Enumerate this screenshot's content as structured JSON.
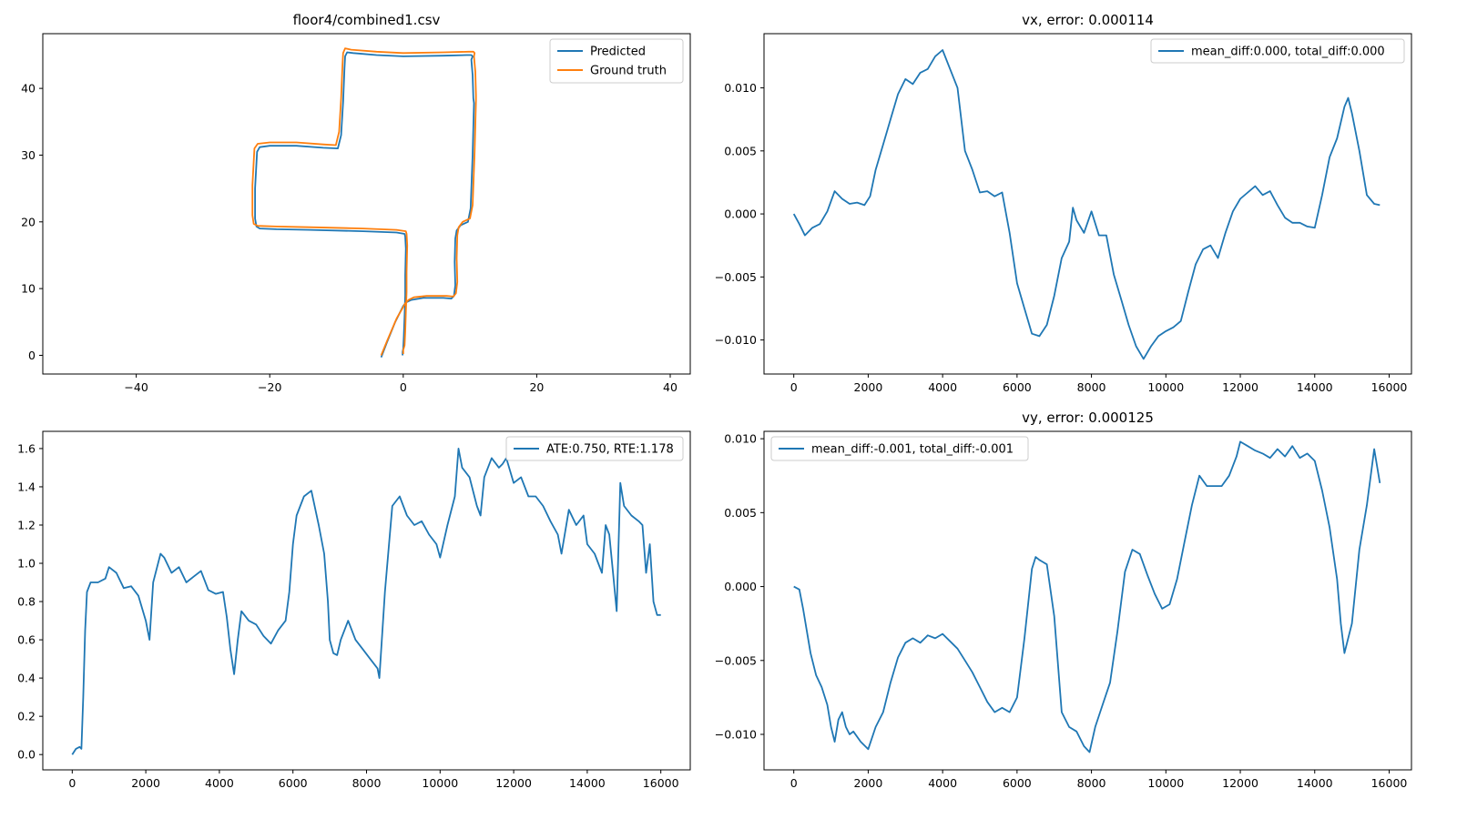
{
  "chart_data": [
    {
      "type": "line",
      "title": "floor4/combined1.csv",
      "xlim": [
        -54,
        43
      ],
      "ylim": [
        -2.8,
        48.2
      ],
      "xticks": [
        -40,
        -20,
        0,
        20,
        40
      ],
      "yticks": [
        0,
        10,
        20,
        30,
        40
      ],
      "xtick_labels": [
        "−40",
        "−20",
        "0",
        "20",
        "40"
      ],
      "ytick_labels": [
        "0",
        "10",
        "20",
        "30",
        "40"
      ],
      "legend": "top-right",
      "series": [
        {
          "name": "Predicted",
          "color": "#1f77b4",
          "x": [
            -3.3,
            -2.5,
            -1.2,
            0.0,
            0.4,
            1.2,
            3,
            6,
            7.2,
            7.6,
            7.8,
            7.7,
            7.8,
            8.0,
            8.6,
            9.7,
            10.1,
            10.4,
            10.6,
            10.5,
            10.4,
            10.2,
            10.4,
            10.2,
            9.5,
            6,
            0,
            -4,
            -7.5,
            -8.4,
            -8.7,
            -8.8,
            -9.0,
            -9.3,
            -9.8,
            -12,
            -16,
            -20,
            -21.5,
            -21.9,
            -22.2,
            -22.2,
            -22.0,
            -21.5,
            -19,
            -14,
            -6,
            -1,
            0.2,
            0.3,
            0.4,
            0.3,
            0.3,
            0.2,
            0.1,
            0.0,
            -0.1,
            -0.1
          ],
          "y": [
            -0.3,
            1.8,
            5,
            7.4,
            7.9,
            8.3,
            8.6,
            8.6,
            8.5,
            8.9,
            10.5,
            14,
            17.5,
            18.7,
            19.5,
            20,
            22,
            30,
            37.8,
            38.5,
            42,
            44.3,
            44.8,
            45,
            45,
            44.9,
            44.8,
            45.0,
            45.3,
            45.4,
            44.8,
            43,
            38,
            33,
            31,
            31.1,
            31.4,
            31.4,
            31.2,
            30.5,
            25,
            20.5,
            19.3,
            19.0,
            18.9,
            18.8,
            18.6,
            18.4,
            18.2,
            17.8,
            16,
            12,
            9,
            6,
            3,
            1,
            0.5,
            0.0
          ]
        },
        {
          "name": "Ground truth",
          "color": "#ff7f0e",
          "x": [
            -3.3,
            -2.4,
            -1.0,
            0.3,
            0.8,
            1.6,
            3.5,
            6.5,
            7.5,
            7.9,
            8.1,
            8.0,
            8.1,
            8.3,
            8.9,
            10.0,
            10.4,
            10.7,
            10.9,
            10.9,
            10.8,
            10.6,
            10.7,
            10.5,
            9.8,
            6,
            0,
            -4,
            -7.8,
            -8.7,
            -9.0,
            -9.1,
            -9.3,
            -9.6,
            -10.1,
            -12,
            -16,
            -20,
            -21.8,
            -22.3,
            -22.6,
            -22.6,
            -22.4,
            -21.8,
            -19,
            -14,
            -6,
            -1,
            0.4,
            0.5,
            0.6,
            0.5,
            0.5,
            0.4,
            0.3,
            0.2,
            0.0,
            0.0
          ],
          "y": [
            0.0,
            2.2,
            5.5,
            7.8,
            8.3,
            8.7,
            8.9,
            8.9,
            8.8,
            9.3,
            11,
            14.5,
            18,
            19.2,
            20,
            20.5,
            22.5,
            30.5,
            38.2,
            39,
            42.5,
            44.8,
            45.3,
            45.5,
            45.5,
            45.4,
            45.3,
            45.5,
            45.8,
            46.0,
            45.3,
            43.5,
            38.5,
            33.5,
            31.5,
            31.6,
            31.9,
            31.9,
            31.7,
            31.0,
            25.5,
            21,
            19.7,
            19.4,
            19.3,
            19.2,
            19.0,
            18.8,
            18.6,
            18.2,
            16.5,
            12.5,
            9.5,
            6.5,
            3.5,
            1.5,
            0.8,
            0.2
          ]
        }
      ]
    },
    {
      "type": "line",
      "title": "vx, error: 0.000114",
      "xlim": [
        -800,
        16600
      ],
      "ylim": [
        -0.0127,
        0.0143
      ],
      "xticks": [
        0,
        2000,
        4000,
        6000,
        8000,
        10000,
        12000,
        14000,
        16000
      ],
      "yticks": [
        -0.01,
        -0.005,
        0.0,
        0.005,
        0.01
      ],
      "xtick_labels": [
        "0",
        "2000",
        "4000",
        "6000",
        "8000",
        "10000",
        "12000",
        "14000",
        "16000"
      ],
      "ytick_labels": [
        "−0.010",
        "−0.005",
        "0.000",
        "0.005",
        "0.010"
      ],
      "legend": "top-right",
      "series": [
        {
          "name": "mean_diff:0.000, total_diff:0.000",
          "color": "#1f77b4",
          "x": [
            0,
            150,
            300,
            500,
            700,
            900,
            1100,
            1300,
            1500,
            1700,
            1900,
            2050,
            2200,
            2400,
            2600,
            2800,
            3000,
            3200,
            3400,
            3600,
            3800,
            4000,
            4200,
            4400,
            4500,
            4600,
            4800,
            5000,
            5200,
            5400,
            5600,
            5800,
            6000,
            6200,
            6400,
            6600,
            6800,
            7000,
            7200,
            7400,
            7500,
            7600,
            7800,
            8000,
            8200,
            8400,
            8600,
            8800,
            9000,
            9200,
            9400,
            9600,
            9800,
            10000,
            10200,
            10400,
            10600,
            10800,
            11000,
            11200,
            11400,
            11600,
            11800,
            12000,
            12200,
            12400,
            12600,
            12800,
            13000,
            13200,
            13400,
            13600,
            13800,
            14000,
            14200,
            14400,
            14600,
            14800,
            14900,
            15000,
            15200,
            15400,
            15600,
            15750
          ],
          "y": [
            0.0,
            -0.0008,
            -0.0017,
            -0.0011,
            -0.0008,
            0.0002,
            0.0018,
            0.0012,
            0.0008,
            0.0009,
            0.0007,
            0.0014,
            0.0035,
            0.0055,
            0.0075,
            0.0095,
            0.0107,
            0.0103,
            0.0112,
            0.0115,
            0.0125,
            0.013,
            0.0115,
            0.01,
            0.0075,
            0.005,
            0.0035,
            0.0017,
            0.0018,
            0.0014,
            0.0017,
            -0.0015,
            -0.0055,
            -0.0075,
            -0.0095,
            -0.0097,
            -0.0088,
            -0.0065,
            -0.0035,
            -0.0022,
            0.0005,
            -0.0005,
            -0.0015,
            0.0002,
            -0.0017,
            -0.0017,
            -0.0048,
            -0.0068,
            -0.0088,
            -0.0105,
            -0.0115,
            -0.0105,
            -0.0097,
            -0.0093,
            -0.009,
            -0.0085,
            -0.0062,
            -0.004,
            -0.0028,
            -0.0025,
            -0.0035,
            -0.0015,
            0.0002,
            0.0012,
            0.0017,
            0.0022,
            0.0015,
            0.0018,
            0.0007,
            -0.0003,
            -0.0007,
            -0.0007,
            -0.001,
            -0.0011,
            0.0015,
            0.0045,
            0.006,
            0.0085,
            0.0092,
            0.008,
            0.005,
            0.0015,
            0.0008,
            0.0007
          ]
        }
      ]
    },
    {
      "type": "line",
      "title": "",
      "xlim": [
        -800,
        16800
      ],
      "ylim": [
        -0.08,
        1.69
      ],
      "xticks": [
        0,
        2000,
        4000,
        6000,
        8000,
        10000,
        12000,
        14000,
        16000
      ],
      "yticks": [
        0.0,
        0.2,
        0.4,
        0.6,
        0.8,
        1.0,
        1.2,
        1.4,
        1.6
      ],
      "xtick_labels": [
        "0",
        "2000",
        "4000",
        "6000",
        "8000",
        "10000",
        "12000",
        "14000",
        "16000"
      ],
      "ytick_labels": [
        "0.0",
        "0.2",
        "0.4",
        "0.6",
        "0.8",
        "1.0",
        "1.2",
        "1.4",
        "1.6"
      ],
      "legend": "top-right",
      "series": [
        {
          "name": "ATE:0.750, RTE:1.178",
          "color": "#1f77b4",
          "x": [
            0,
            100,
            200,
            250,
            300,
            350,
            400,
            500,
            700,
            900,
            1000,
            1200,
            1400,
            1600,
            1800,
            2000,
            2100,
            2200,
            2400,
            2500,
            2700,
            2900,
            3100,
            3300,
            3500,
            3700,
            3900,
            4100,
            4200,
            4300,
            4400,
            4500,
            4600,
            4800,
            5000,
            5200,
            5400,
            5600,
            5800,
            5900,
            6000,
            6100,
            6300,
            6500,
            6700,
            6850,
            6950,
            7000,
            7100,
            7200,
            7300,
            7500,
            7700,
            7900,
            8100,
            8300,
            8350,
            8500,
            8700,
            8900,
            9100,
            9300,
            9500,
            9700,
            9900,
            10000,
            10200,
            10400,
            10500,
            10600,
            10800,
            11000,
            11100,
            11200,
            11400,
            11600,
            11700,
            11800,
            12000,
            12200,
            12400,
            12600,
            12800,
            13000,
            13200,
            13300,
            13500,
            13700,
            13900,
            14000,
            14200,
            14400,
            14500,
            14600,
            14700,
            14800,
            14900,
            15000,
            15200,
            15400,
            15500,
            15600,
            15700,
            15800,
            15900,
            16000
          ],
          "y": [
            0.0,
            0.03,
            0.04,
            0.03,
            0.3,
            0.65,
            0.85,
            0.9,
            0.9,
            0.92,
            0.98,
            0.95,
            0.87,
            0.88,
            0.83,
            0.7,
            0.6,
            0.9,
            1.05,
            1.03,
            0.95,
            0.98,
            0.9,
            0.93,
            0.96,
            0.86,
            0.84,
            0.85,
            0.72,
            0.55,
            0.42,
            0.6,
            0.75,
            0.7,
            0.68,
            0.62,
            0.58,
            0.65,
            0.7,
            0.85,
            1.1,
            1.25,
            1.35,
            1.38,
            1.2,
            1.05,
            0.8,
            0.6,
            0.53,
            0.52,
            0.6,
            0.7,
            0.6,
            0.55,
            0.5,
            0.45,
            0.4,
            0.85,
            1.3,
            1.35,
            1.25,
            1.2,
            1.22,
            1.15,
            1.1,
            1.03,
            1.2,
            1.35,
            1.6,
            1.5,
            1.45,
            1.3,
            1.25,
            1.45,
            1.55,
            1.5,
            1.52,
            1.55,
            1.42,
            1.45,
            1.35,
            1.35,
            1.3,
            1.22,
            1.15,
            1.05,
            1.28,
            1.2,
            1.25,
            1.1,
            1.05,
            0.95,
            1.2,
            1.15,
            0.95,
            0.75,
            1.42,
            1.3,
            1.25,
            1.22,
            1.2,
            0.95,
            1.1,
            0.8,
            0.73,
            0.73
          ]
        }
      ]
    },
    {
      "type": "line",
      "title": "vy, error: 0.000125",
      "xlim": [
        -800,
        16600
      ],
      "ylim": [
        -0.0124,
        0.0105
      ],
      "xticks": [
        0,
        2000,
        4000,
        6000,
        8000,
        10000,
        12000,
        14000,
        16000
      ],
      "yticks": [
        -0.01,
        -0.005,
        0.0,
        0.005,
        0.01
      ],
      "xtick_labels": [
        "0",
        "2000",
        "4000",
        "6000",
        "8000",
        "10000",
        "12000",
        "14000",
        "16000"
      ],
      "ytick_labels": [
        "−0.010",
        "−0.005",
        "0.000",
        "0.005",
        "0.010"
      ],
      "legend": "top-left",
      "series": [
        {
          "name": "mean_diff:-0.001, total_diff:-0.001",
          "color": "#1f77b4",
          "x": [
            0,
            150,
            250,
            350,
            450,
            600,
            750,
            900,
            1000,
            1100,
            1200,
            1300,
            1400,
            1500,
            1600,
            1800,
            2000,
            2200,
            2400,
            2600,
            2800,
            3000,
            3200,
            3400,
            3600,
            3800,
            4000,
            4200,
            4400,
            4600,
            4800,
            5000,
            5200,
            5400,
            5600,
            5800,
            6000,
            6200,
            6400,
            6500,
            6600,
            6800,
            7000,
            7200,
            7400,
            7600,
            7800,
            7950,
            8100,
            8300,
            8500,
            8700,
            8900,
            9100,
            9300,
            9500,
            9700,
            9900,
            10100,
            10300,
            10500,
            10700,
            10900,
            11100,
            11300,
            11500,
            11700,
            11900,
            12000,
            12200,
            12400,
            12600,
            12800,
            13000,
            13200,
            13400,
            13600,
            13800,
            14000,
            14200,
            14400,
            14600,
            14700,
            14800,
            15000,
            15200,
            15400,
            15600,
            15750
          ],
          "y": [
            0.0,
            -0.0002,
            -0.0015,
            -0.003,
            -0.0045,
            -0.006,
            -0.0068,
            -0.008,
            -0.0095,
            -0.0105,
            -0.009,
            -0.0085,
            -0.0095,
            -0.01,
            -0.0098,
            -0.0105,
            -0.011,
            -0.0095,
            -0.0085,
            -0.0065,
            -0.0048,
            -0.0038,
            -0.0035,
            -0.0038,
            -0.0033,
            -0.0035,
            -0.0032,
            -0.0037,
            -0.0042,
            -0.005,
            -0.0058,
            -0.0068,
            -0.0078,
            -0.0085,
            -0.0082,
            -0.0085,
            -0.0075,
            -0.0035,
            0.0012,
            0.002,
            0.0018,
            0.0015,
            -0.002,
            -0.0085,
            -0.0095,
            -0.0098,
            -0.0108,
            -0.0112,
            -0.0095,
            -0.008,
            -0.0065,
            -0.003,
            0.001,
            0.0025,
            0.0022,
            0.0008,
            -0.0005,
            -0.0015,
            -0.0012,
            0.0005,
            0.003,
            0.0055,
            0.0075,
            0.0068,
            0.0068,
            0.0068,
            0.0075,
            0.0088,
            0.0098,
            0.0095,
            0.0092,
            0.009,
            0.0087,
            0.0093,
            0.0088,
            0.0095,
            0.0087,
            0.009,
            0.0085,
            0.0065,
            0.004,
            0.0005,
            -0.0025,
            -0.0045,
            -0.0025,
            0.0025,
            0.0055,
            0.0093,
            0.007
          ]
        }
      ]
    }
  ]
}
